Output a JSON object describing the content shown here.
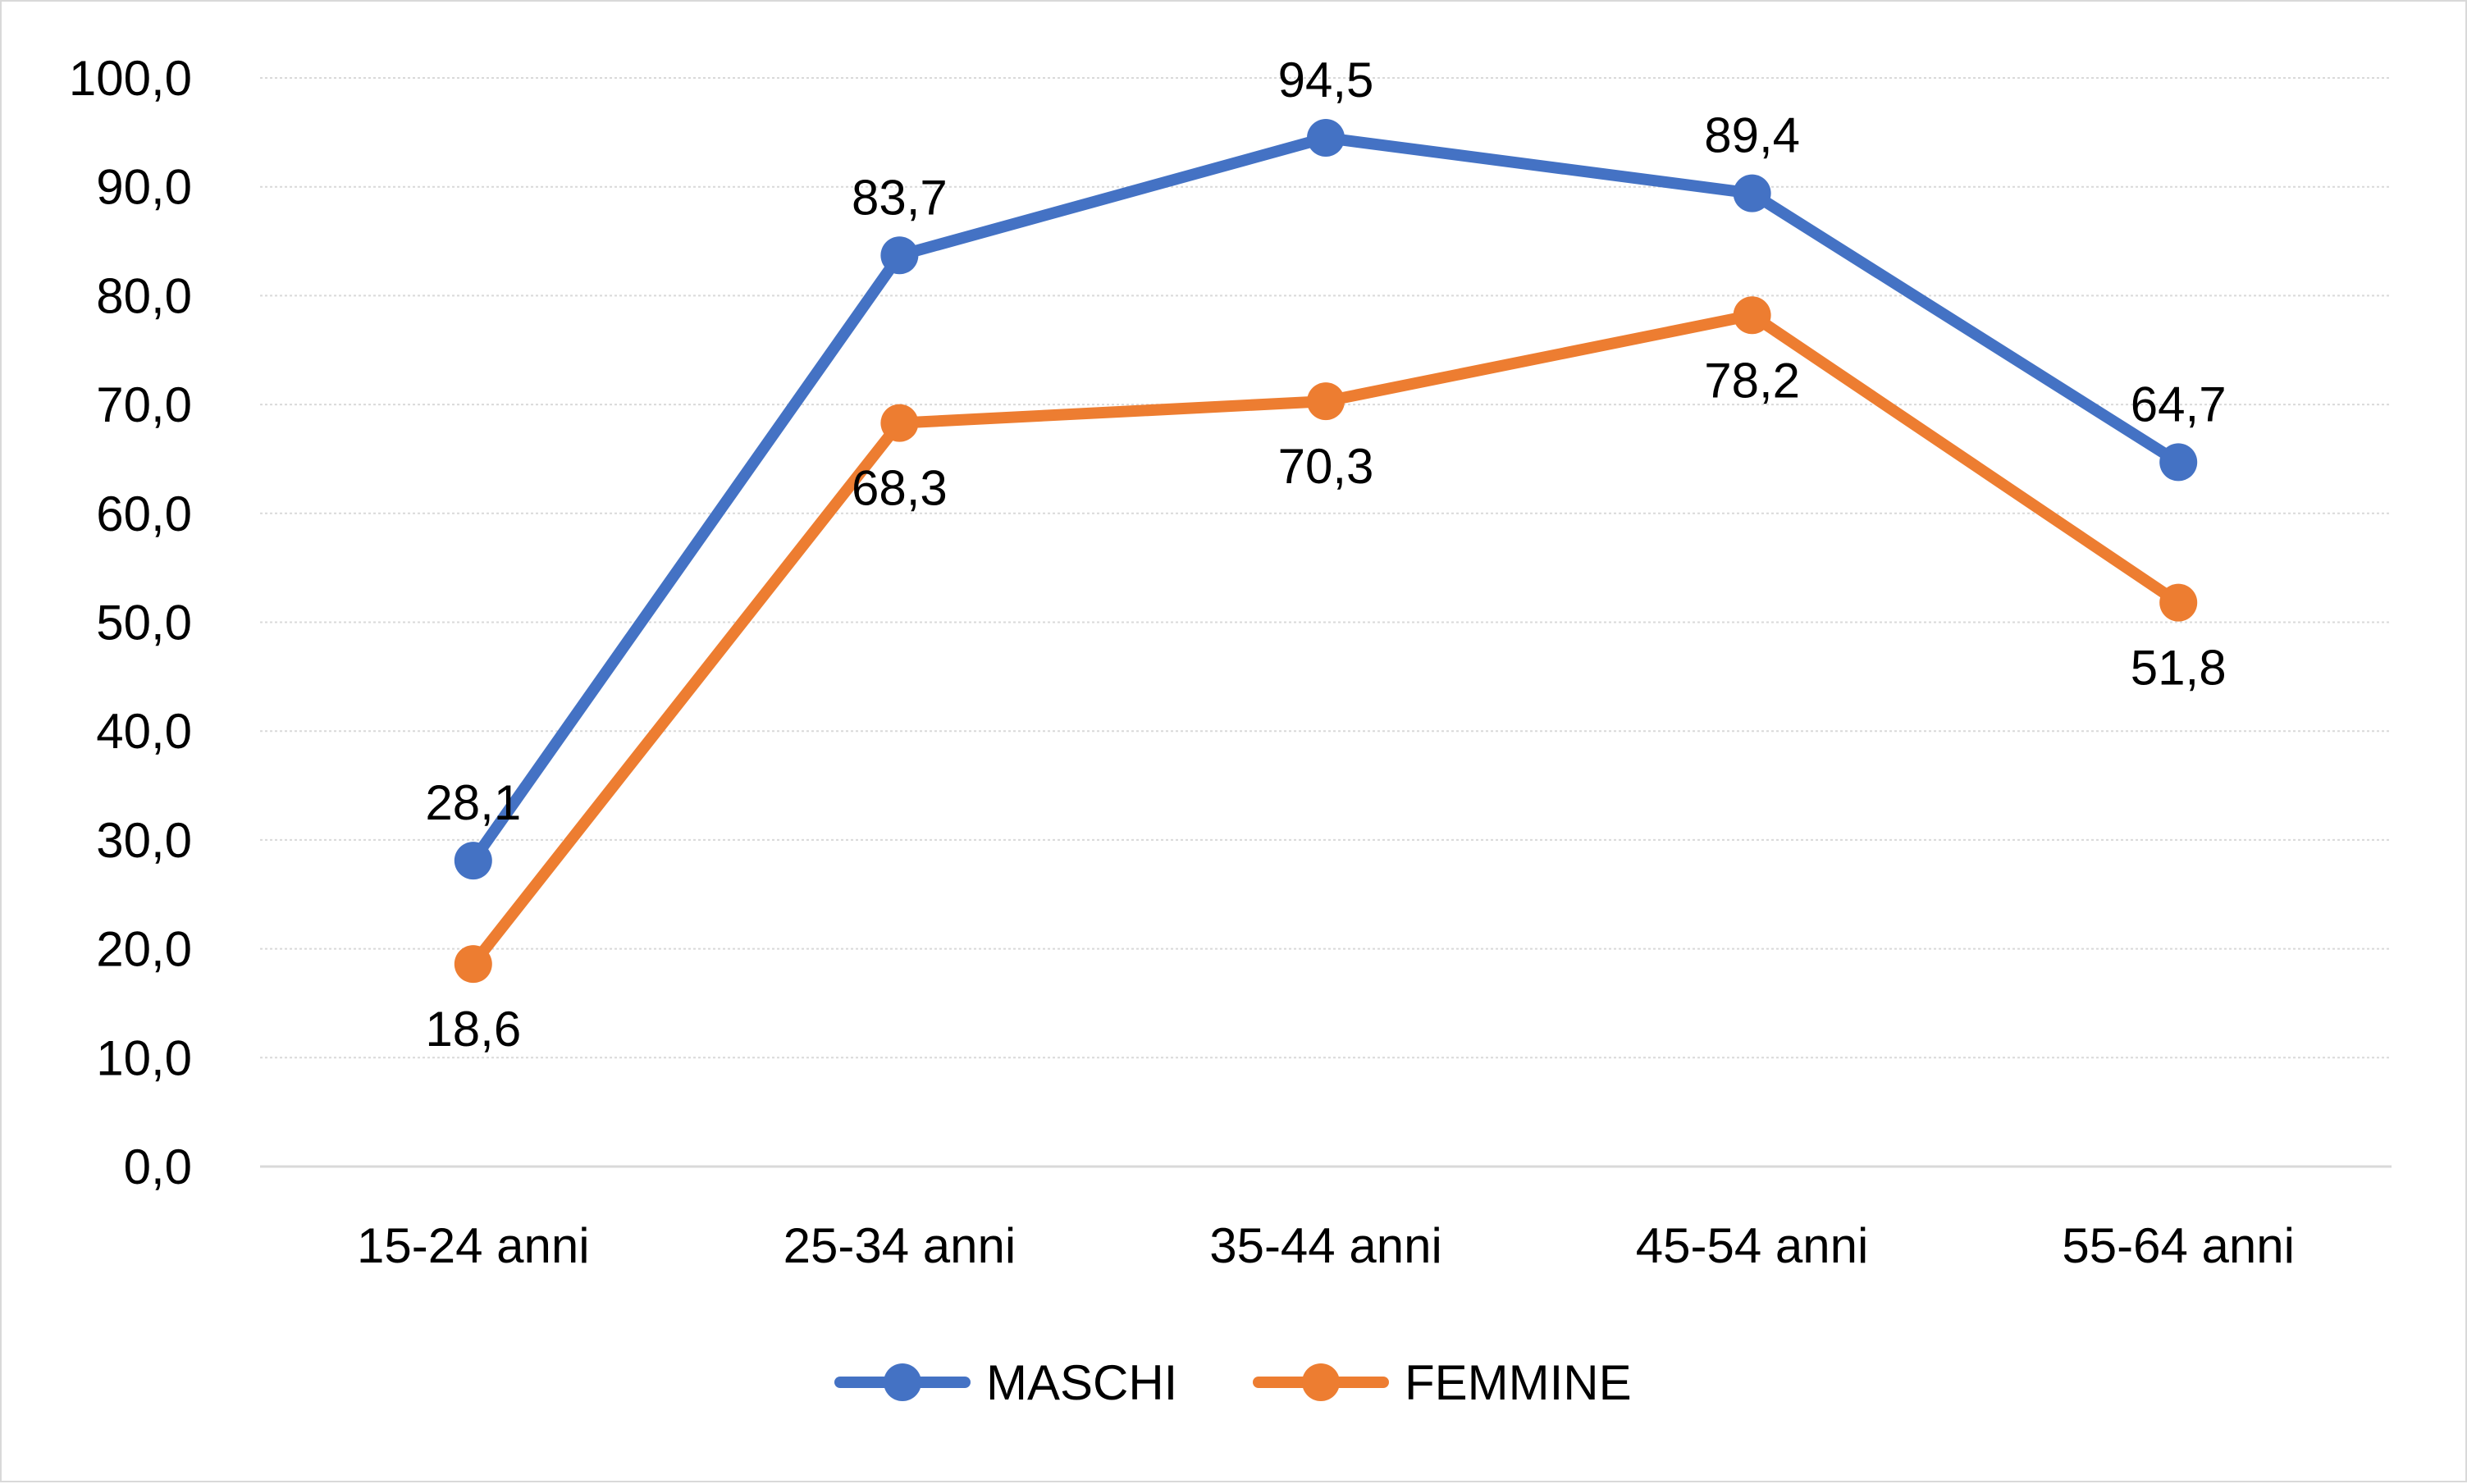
{
  "chart_data": {
    "type": "line",
    "categories": [
      "15-24 anni",
      "25-34 anni",
      "35-44 anni",
      "45-54 anni",
      "55-64 anni"
    ],
    "series": [
      {
        "name": "MASCHI",
        "color": "#4472C4",
        "values": [
          28.1,
          83.7,
          94.5,
          89.4,
          64.7
        ],
        "labels": [
          "28,1",
          "83,7",
          "94,5",
          "89,4",
          "64,7"
        ],
        "label_position": "above"
      },
      {
        "name": "FEMMINE",
        "color": "#ED7D31",
        "values": [
          18.6,
          68.3,
          70.3,
          78.2,
          51.8
        ],
        "labels": [
          "18,6",
          "68,3",
          "70,3",
          "78,2",
          "51,8"
        ],
        "label_position": "below"
      }
    ],
    "ylim": [
      0,
      100
    ],
    "yticks": [
      0,
      10,
      20,
      30,
      40,
      50,
      60,
      70,
      80,
      90,
      100
    ],
    "ytick_labels": [
      "0,0",
      "10,0",
      "20,0",
      "30,0",
      "40,0",
      "50,0",
      "60,0",
      "70,0",
      "80,0",
      "90,0",
      "100,0"
    ],
    "title": "",
    "xlabel": "",
    "ylabel": "",
    "grid": true,
    "legend_position": "bottom-center"
  }
}
